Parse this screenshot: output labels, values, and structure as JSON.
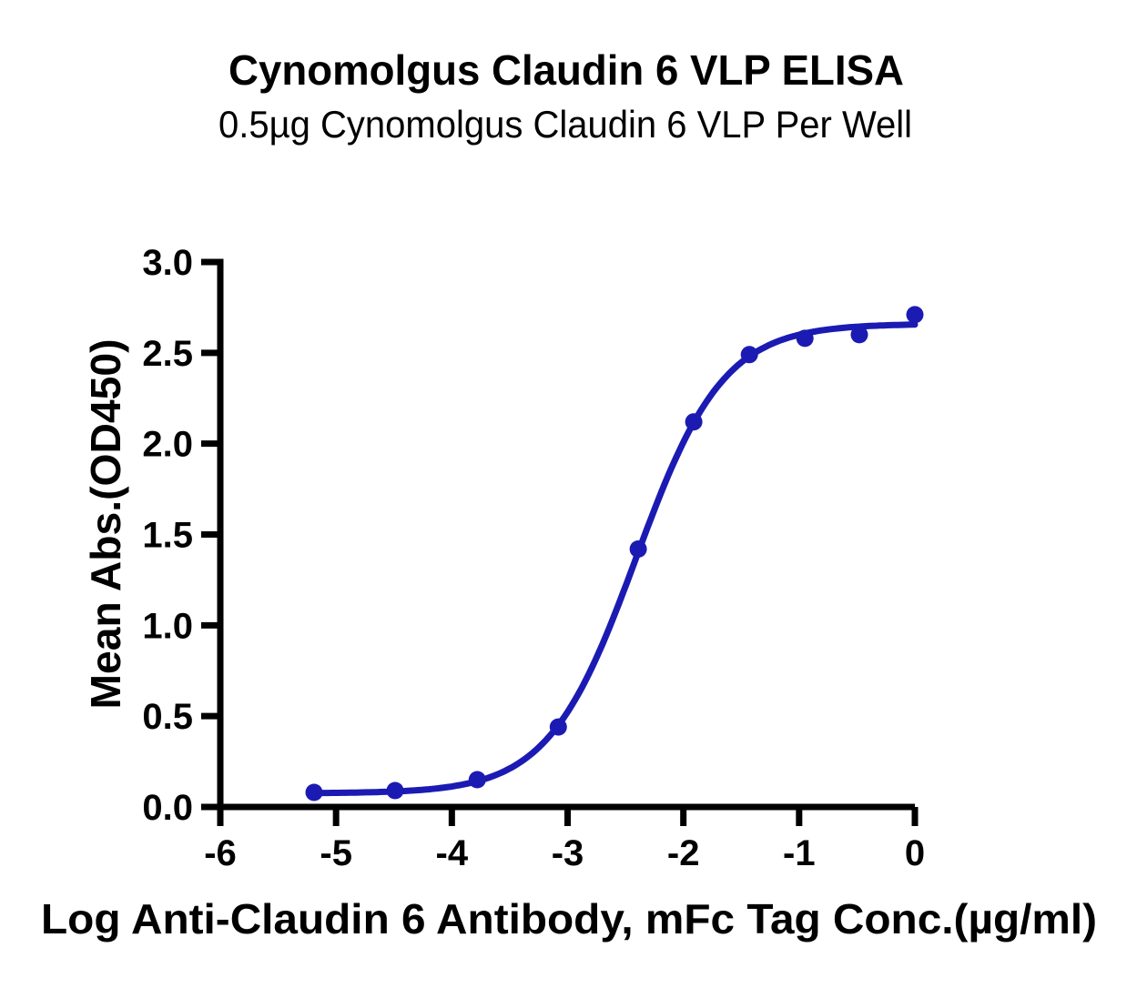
{
  "page": {
    "background": "#ffffff"
  },
  "chart_data": {
    "type": "scatter",
    "title": "Cynomolgus Claudin 6 VLP ELISA",
    "subtitle": "0.5µg Cynomolgus Claudin 6 VLP Per Well",
    "xlabel": "Log Anti-Claudin 6 Antibody, mFc Tag Conc.(µg/ml)",
    "ylabel": "Mean Abs.(OD450)",
    "xlim": [
      -6,
      0
    ],
    "ylim": [
      0,
      3
    ],
    "x_ticks": {
      "values": [
        -6,
        -5,
        -4,
        -3,
        -2,
        -1,
        0
      ],
      "labels": [
        "-6",
        "-5",
        "-4",
        "-3",
        "-2",
        "-1",
        "0"
      ]
    },
    "y_ticks": {
      "values": [
        0,
        0.5,
        1,
        1.5,
        2,
        2.5,
        3
      ],
      "labels": [
        "0.0",
        "0.5",
        "1.0",
        "1.5",
        "2.0",
        "2.5",
        "3.0"
      ]
    },
    "grid": false,
    "legend": "none",
    "axis_color": "#000000",
    "series": [
      {
        "marker": "circle",
        "color": "#1b1bb3",
        "x": [
          -5.19,
          -4.49,
          -3.78,
          -3.08,
          -2.39,
          -1.91,
          -1.43,
          -0.95,
          -0.48,
          0.0
        ],
        "y": [
          0.08,
          0.09,
          0.15,
          0.44,
          1.42,
          2.12,
          2.49,
          2.58,
          2.6,
          2.71
        ]
      }
    ],
    "fit_curve": {
      "model": "4PL",
      "bottom": 0.075,
      "top": 2.66,
      "logEC50": -2.41,
      "hillslope": 1.15,
      "x_range": [
        -5.19,
        0.0
      ]
    }
  }
}
